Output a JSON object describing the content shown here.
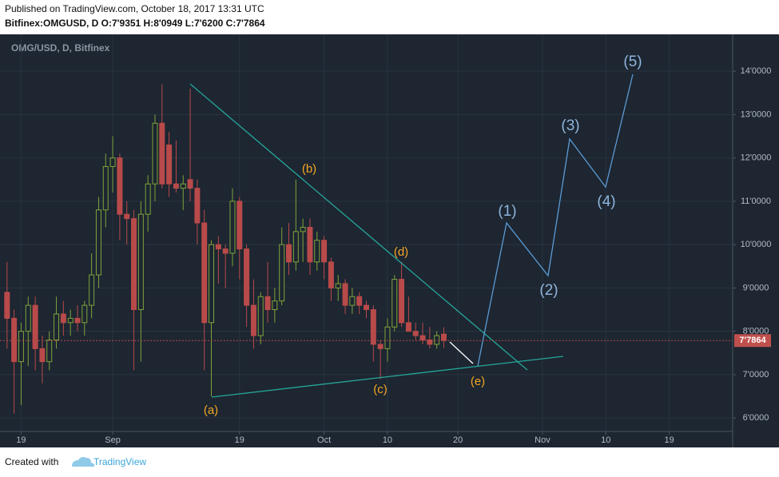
{
  "header": {
    "published": "Published on TradingView.com, October 18, 2017 13:31 UTC",
    "symbol": "Bitfinex:OMGUSD, D O:7'9351 H:8'0949 L:7'6200 C:7'7864"
  },
  "footer": {
    "created": "Created with",
    "brand": "TradingView"
  },
  "chart_data": {
    "type": "candlestick",
    "title": "OMG/USD, D, Bitfinex",
    "up_color": "#7fa33a",
    "down_color": "#b84a4a",
    "x": [
      "08-17",
      "08-18",
      "08-19",
      "08-20",
      "08-21",
      "08-22",
      "08-23",
      "08-24",
      "08-25",
      "08-26",
      "08-27",
      "08-28",
      "08-29",
      "08-30",
      "08-31",
      "09-01",
      "09-02",
      "09-03",
      "09-04",
      "09-05",
      "09-06",
      "09-07",
      "09-08",
      "09-09",
      "09-10",
      "09-11",
      "09-12",
      "09-13",
      "09-14",
      "09-15",
      "09-16",
      "09-17",
      "09-18",
      "09-19",
      "09-20",
      "09-21",
      "09-22",
      "09-23",
      "09-24",
      "09-25",
      "09-26",
      "09-27",
      "09-28",
      "09-29",
      "09-30",
      "10-01",
      "10-02",
      "10-03",
      "10-04",
      "10-05",
      "10-06",
      "10-07",
      "10-08",
      "10-09",
      "10-10",
      "10-11",
      "10-12",
      "10-13",
      "10-14",
      "10-15",
      "10-16",
      "10-17",
      "10-18"
    ],
    "open": [
      8.9,
      8.3,
      7.3,
      8.0,
      8.6,
      7.6,
      7.3,
      7.8,
      8.4,
      8.2,
      8.3,
      8.2,
      8.6,
      9.3,
      10.8,
      11.8,
      12.0,
      10.7,
      10.6,
      8.5,
      10.7,
      11.4,
      12.8,
      12.3,
      11.4,
      11.3,
      11.5,
      11.3,
      10.5,
      8.2,
      10.0,
      9.9,
      9.8,
      11.0,
      9.9,
      8.6,
      7.9,
      8.8,
      8.5,
      8.7,
      10.0,
      9.6,
      10.3,
      10.4,
      9.6,
      10.1,
      9.6,
      9.0,
      9.1,
      8.6,
      8.8,
      8.6,
      8.5,
      7.7,
      7.6,
      8.1,
      9.2,
      8.2,
      8.0,
      7.9,
      7.8,
      7.7,
      7.9351
    ],
    "high": [
      9.6,
      8.5,
      8.2,
      8.8,
      8.8,
      7.9,
      8.0,
      8.8,
      8.7,
      8.5,
      8.6,
      8.7,
      9.8,
      11.1,
      12.1,
      12.5,
      12.1,
      11.0,
      10.8,
      11.0,
      11.6,
      13.0,
      13.7,
      12.6,
      12.4,
      11.6,
      13.6,
      11.5,
      10.8,
      10.1,
      10.2,
      10.0,
      11.3,
      11.1,
      10.0,
      9.2,
      8.9,
      9.6,
      9.0,
      10.4,
      10.5,
      11.5,
      10.6,
      10.6,
      10.3,
      10.2,
      9.7,
      9.3,
      9.2,
      9.0,
      8.9,
      8.7,
      8.6,
      7.8,
      8.3,
      9.3,
      9.6,
      8.8,
      8.2,
      8.2,
      8.1,
      8.0,
      8.0949
    ],
    "low": [
      7.6,
      6.1,
      6.3,
      7.2,
      7.1,
      6.8,
      7.1,
      7.6,
      7.9,
      7.9,
      8.0,
      7.9,
      8.3,
      9.0,
      10.4,
      11.2,
      10.1,
      10.0,
      7.1,
      7.3,
      10.3,
      11.0,
      11.3,
      11.1,
      11.2,
      10.8,
      11.0,
      10.0,
      7.1,
      6.5,
      9.1,
      9.0,
      9.5,
      9.2,
      8.1,
      7.6,
      7.7,
      8.2,
      8.2,
      8.6,
      9.3,
      9.4,
      9.6,
      9.3,
      9.4,
      9.2,
      8.7,
      8.7,
      8.4,
      8.4,
      8.4,
      8.3,
      7.3,
      6.9,
      7.3,
      8.0,
      8.1,
      8.0,
      7.8,
      7.7,
      7.6,
      7.6,
      7.62
    ],
    "close": [
      8.3,
      7.3,
      8.0,
      8.6,
      7.6,
      7.3,
      7.8,
      8.4,
      8.2,
      8.3,
      8.2,
      8.6,
      9.3,
      10.8,
      11.8,
      12.0,
      10.7,
      10.6,
      8.5,
      10.7,
      11.4,
      12.8,
      11.4,
      11.4,
      11.3,
      11.4,
      11.3,
      10.5,
      8.2,
      10.0,
      9.9,
      9.8,
      11.0,
      9.9,
      8.6,
      7.9,
      8.8,
      8.5,
      8.7,
      10.0,
      9.6,
      10.3,
      10.4,
      9.6,
      10.1,
      9.6,
      9.0,
      9.1,
      8.6,
      8.8,
      8.6,
      8.5,
      7.7,
      7.6,
      8.1,
      9.2,
      8.2,
      8.0,
      7.9,
      7.8,
      7.7,
      7.9,
      7.7864
    ],
    "last_price": 7.7864,
    "last_price_label": "7'7864",
    "xlim": [
      "08-16",
      "11-28"
    ],
    "xticks": [
      {
        "value": "08-19",
        "label": "19"
      },
      {
        "value": "09-01",
        "label": "Sep"
      },
      {
        "value": "09-19",
        "label": "19"
      },
      {
        "value": "10-01",
        "label": "Oct"
      },
      {
        "value": "10-10",
        "label": "10"
      },
      {
        "value": "10-20",
        "label": "20"
      },
      {
        "value": "11-01",
        "label": "Nov"
      },
      {
        "value": "11-10",
        "label": "10"
      },
      {
        "value": "11-19",
        "label": "19"
      }
    ],
    "ylim": [
      5.69,
      14.85
    ],
    "yticks": [
      {
        "value": 6,
        "label": "6'0000"
      },
      {
        "value": 7,
        "label": "7'0000"
      },
      {
        "value": 8,
        "label": "8'0000"
      },
      {
        "value": 9,
        "label": "9'0000"
      },
      {
        "value": 10,
        "label": "10'0000"
      },
      {
        "value": 11,
        "label": "11'0000"
      },
      {
        "value": 12,
        "label": "12'0000"
      },
      {
        "value": 13,
        "label": "13'0000"
      },
      {
        "value": 14,
        "label": "14'0000"
      }
    ],
    "grid": true,
    "annotations": [
      "(a)",
      "(b)",
      "(c)",
      "(d)",
      "(e)",
      "(1)",
      "(2)",
      "(3)",
      "(4)",
      "(5)"
    ]
  }
}
